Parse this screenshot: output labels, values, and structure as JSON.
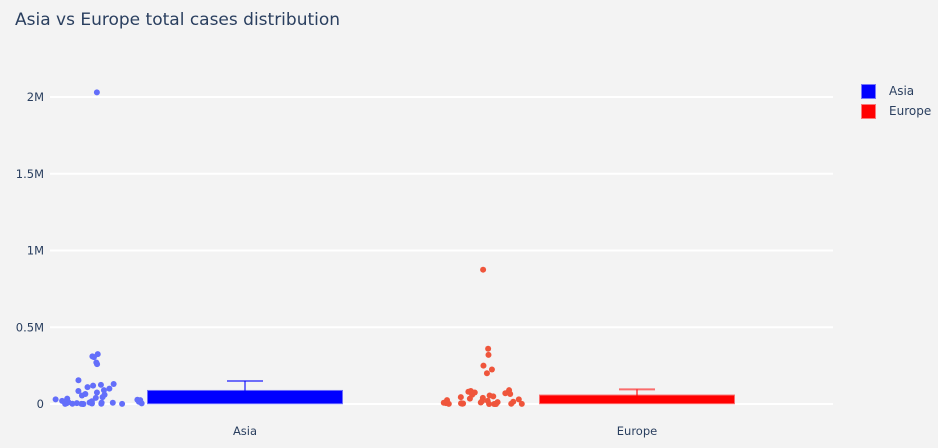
{
  "chart_data": {
    "type": "box",
    "title": "Asia vs Europe total cases distribution",
    "xlabel": "",
    "ylabel": "",
    "ylim": [
      0,
      2100000
    ],
    "yticks": [
      {
        "value": 0,
        "label": "0"
      },
      {
        "value": 500000,
        "label": "0.5M"
      },
      {
        "value": 1000000,
        "label": "1M"
      },
      {
        "value": 1500000,
        "label": "1.5M"
      },
      {
        "value": 2000000,
        "label": "2M"
      }
    ],
    "categories": [
      "Asia",
      "Europe"
    ],
    "grid": true,
    "legend_position": "top-right",
    "series": [
      {
        "name": "Asia",
        "box_color": "#0000ff",
        "point_color": "#636efa",
        "box": {
          "q1": 5000,
          "median": 40000,
          "q3": 85000,
          "upperfence": 150000,
          "lowerfence": 0
        },
        "points": [
          2030000,
          325000,
          310000,
          305000,
          270000,
          260000,
          155000,
          130000,
          125000,
          120000,
          110000,
          100000,
          90000,
          85000,
          75000,
          65000,
          60000,
          55000,
          45000,
          40000,
          35000,
          30000,
          28000,
          25000,
          20000,
          18000,
          15000,
          12000,
          10000,
          9000,
          8000,
          6000,
          5000,
          4000,
          3000,
          2000,
          1500,
          1000,
          800,
          500,
          300,
          200
        ]
      },
      {
        "name": "Europe",
        "box_color": "#ff0000",
        "point_color": "#ef553b",
        "box": {
          "q1": 5000,
          "median": 20000,
          "q3": 55000,
          "upperfence": 95000,
          "lowerfence": 0
        },
        "points": [
          875000,
          360000,
          320000,
          250000,
          225000,
          200000,
          90000,
          85000,
          80000,
          75000,
          70000,
          65000,
          60000,
          55000,
          50000,
          45000,
          40000,
          35000,
          30000,
          25000,
          20000,
          18000,
          15000,
          12000,
          10000,
          8000,
          6000,
          5000,
          4000,
          3000,
          2000,
          1500,
          1000,
          800,
          500,
          300,
          200,
          100
        ]
      }
    ]
  }
}
